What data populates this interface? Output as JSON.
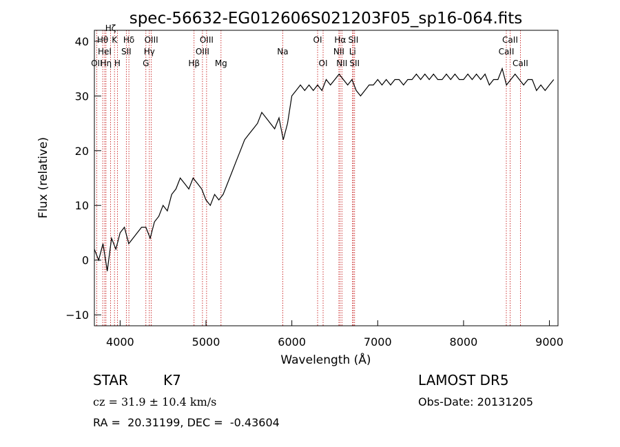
{
  "chart_data": {
    "type": "line",
    "title": "spec-56632-EG012606S021203F05_sp16-064.fits",
    "xlabel": "Wavelength (Å)",
    "ylabel": "Flux (relative)",
    "xlim": [
      3700,
      9100
    ],
    "ylim": [
      -12,
      42
    ],
    "xticks": [
      4000,
      5000,
      6000,
      7000,
      8000,
      9000
    ],
    "yticks": [
      -10,
      0,
      10,
      20,
      30,
      40
    ],
    "series": [
      {
        "x": [
          3700,
          3750,
          3800,
          3850,
          3900,
          3950,
          4000,
          4050,
          4100,
          4150,
          4200,
          4250,
          4300,
          4350,
          4400,
          4450,
          4500,
          4550,
          4600,
          4650,
          4700,
          4750,
          4800,
          4850,
          4900,
          4950,
          5000,
          5050,
          5100,
          5150,
          5200,
          5250,
          5300,
          5350,
          5400,
          5450,
          5500,
          5550,
          5600,
          5650,
          5700,
          5750,
          5800,
          5850,
          5900,
          5950,
          6000,
          6050,
          6100,
          6150,
          6200,
          6250,
          6300,
          6350,
          6400,
          6450,
          6500,
          6550,
          6600,
          6650,
          6700,
          6750,
          6800,
          6850,
          6900,
          6950,
          7000,
          7050,
          7100,
          7150,
          7200,
          7250,
          7300,
          7350,
          7400,
          7450,
          7500,
          7550,
          7600,
          7650,
          7700,
          7750,
          7800,
          7850,
          7900,
          7950,
          8000,
          8050,
          8100,
          8150,
          8200,
          8250,
          8300,
          8350,
          8400,
          8450,
          8500,
          8550,
          8600,
          8650,
          8700,
          8750,
          8800,
          8850,
          8900,
          8950,
          9000,
          9050
        ],
        "y": [
          2,
          0,
          3,
          -2,
          4,
          2,
          5,
          6,
          3,
          4,
          5,
          6,
          6,
          4,
          7,
          8,
          10,
          9,
          12,
          13,
          15,
          14,
          13,
          15,
          14,
          13,
          11,
          10,
          12,
          11,
          12,
          14,
          16,
          18,
          20,
          22,
          23,
          24,
          25,
          27,
          26,
          25,
          24,
          26,
          22,
          25,
          30,
          31,
          32,
          31,
          32,
          31,
          32,
          31,
          33,
          32,
          33,
          34,
          33,
          32,
          33,
          31,
          30,
          31,
          32,
          32,
          33,
          32,
          33,
          32,
          33,
          33,
          32,
          33,
          33,
          34,
          33,
          34,
          33,
          34,
          33,
          33,
          34,
          33,
          34,
          33,
          33,
          34,
          33,
          34,
          33,
          34,
          32,
          33,
          33,
          35,
          32,
          33,
          34,
          33,
          32,
          33,
          33,
          31,
          32,
          31,
          32,
          33
        ]
      }
    ],
    "lines": [
      {
        "wl": 3727,
        "label": "OII",
        "row": 3
      },
      {
        "wl": 3797,
        "label": "Hθ",
        "row": 1
      },
      {
        "wl": 3820,
        "label": "HeI",
        "row": 2
      },
      {
        "wl": 3835,
        "label": "Hη",
        "row": 3
      },
      {
        "wl": 3889,
        "label": "Hζ",
        "row": 0
      },
      {
        "wl": 3934,
        "label": "K",
        "row": 1
      },
      {
        "wl": 3968,
        "label": "H",
        "row": 3
      },
      {
        "wl": 4072,
        "label": "SII",
        "row": 2
      },
      {
        "wl": 4102,
        "label": "Hδ",
        "row": 1
      },
      {
        "wl": 4300,
        "label": "G",
        "row": 3
      },
      {
        "wl": 4340,
        "label": "Hγ",
        "row": 2
      },
      {
        "wl": 4363,
        "label": "OIII",
        "row": 1
      },
      {
        "wl": 4861,
        "label": "Hβ",
        "row": 3
      },
      {
        "wl": 4959,
        "label": "OIII",
        "row": 2
      },
      {
        "wl": 5007,
        "label": "OIII",
        "row": 1
      },
      {
        "wl": 5175,
        "label": "Mg",
        "row": 3
      },
      {
        "wl": 5894,
        "label": "Na",
        "row": 2
      },
      {
        "wl": 6300,
        "label": "OI",
        "row": 1
      },
      {
        "wl": 6364,
        "label": "OI",
        "row": 3
      },
      {
        "wl": 6548,
        "label": "NII",
        "row": 2
      },
      {
        "wl": 6563,
        "label": "Hα",
        "row": 1
      },
      {
        "wl": 6583,
        "label": "NII",
        "row": 3
      },
      {
        "wl": 6707,
        "label": "Li",
        "row": 2
      },
      {
        "wl": 6716,
        "label": "SII",
        "row": 1
      },
      {
        "wl": 6731,
        "label": "SII",
        "row": 3
      },
      {
        "wl": 8498,
        "label": "CaII",
        "row": 2
      },
      {
        "wl": 8542,
        "label": "CaII",
        "row": 1
      },
      {
        "wl": 8662,
        "label": "CaII",
        "row": 3
      }
    ]
  },
  "info": {
    "object_class": "STAR",
    "subclass": "K7",
    "survey": "LAMOST DR5",
    "velocity": "cz = 31.9 ± 10.4 km/s",
    "obs_date": "Obs-Date: 20131205",
    "coords": "RA =  20.31199, DEC =  -0.43604"
  }
}
